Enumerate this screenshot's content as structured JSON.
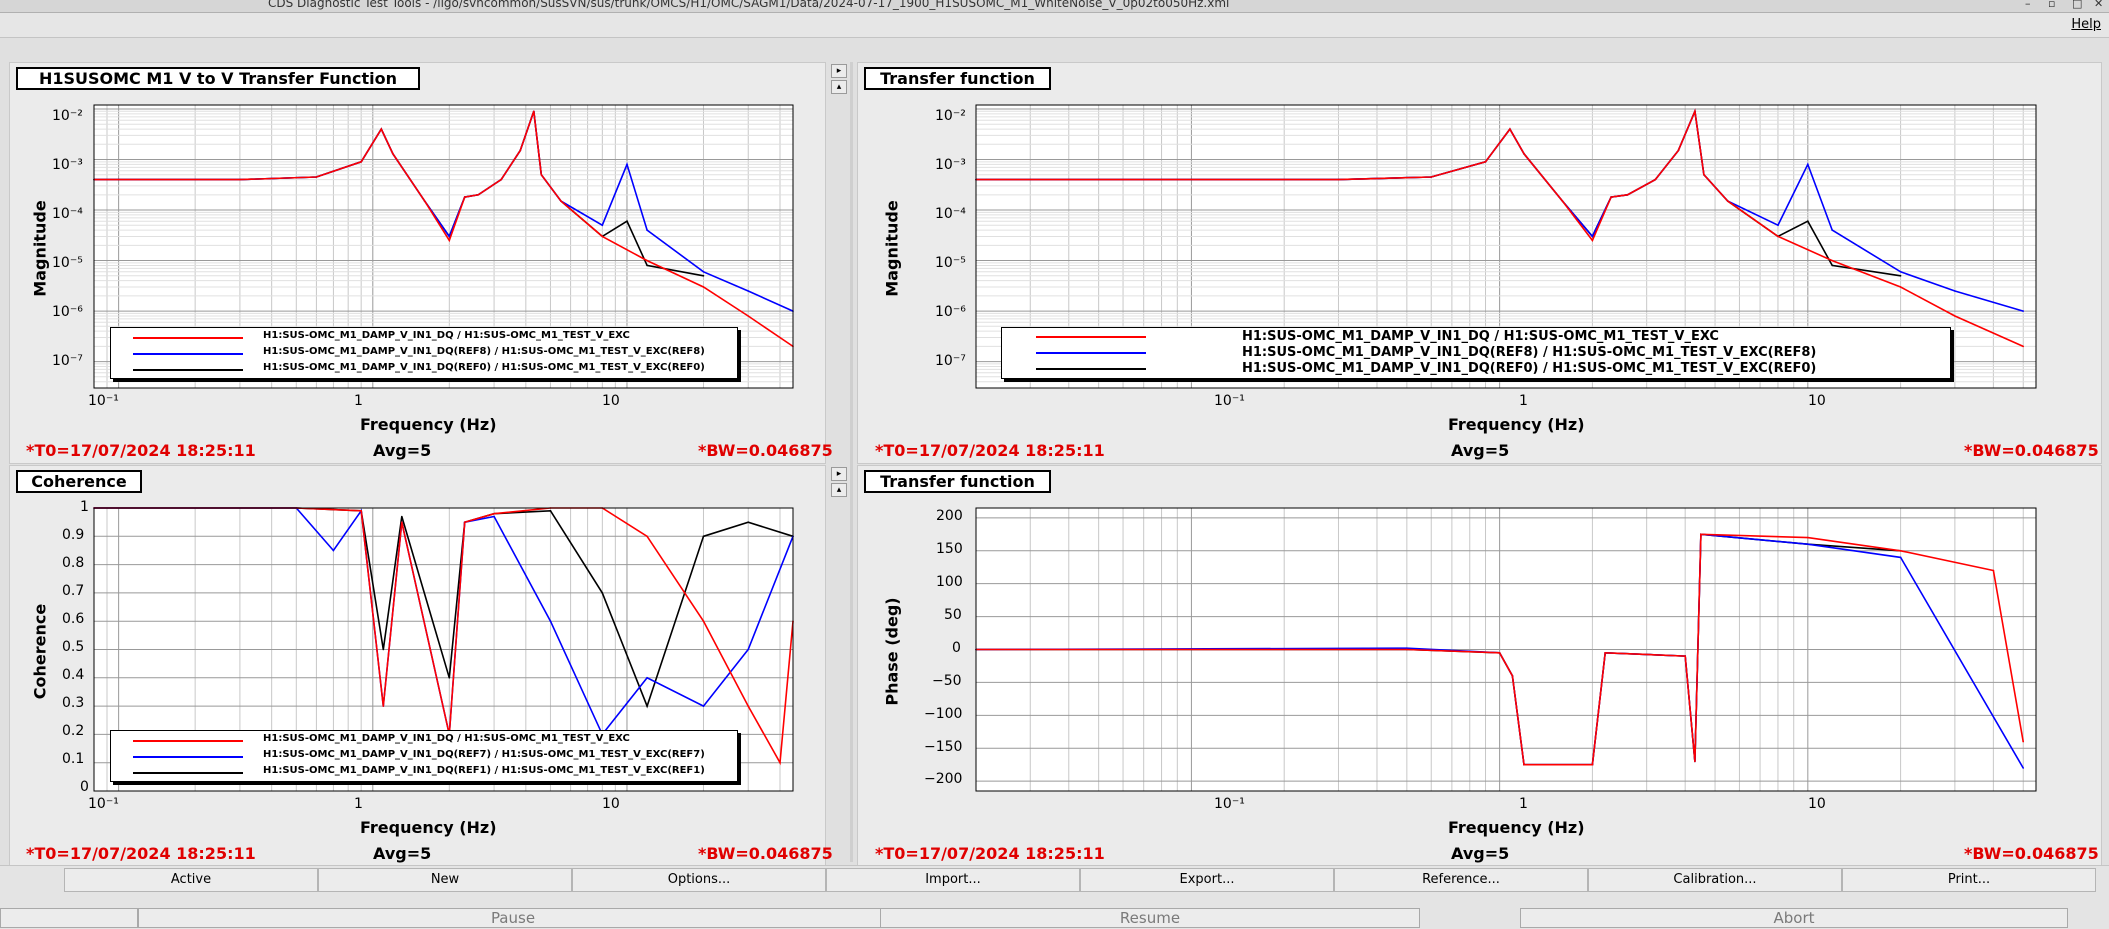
{
  "window": {
    "title": "CDS Diagnostic Test Tools - /ligo/svncommon/SusSVN/sus/trunk/OMCS/H1/OMC/SAGM1/Data/2024-07-17_1900_H1SUSOMC_M1_WhiteNoise_V_0p02to050Hz.xml"
  },
  "menu": {
    "help": "Help"
  },
  "colors": {
    "red": "#ff0000",
    "blue": "#0000ff",
    "black": "#000000",
    "stat_red": "#e00000"
  },
  "panels": [
    {
      "title": "H1SUSOMC M1 V to V Transfer Function",
      "ylabel": "Magnitude",
      "xlabel": "Frequency (Hz)",
      "xticks": [
        "10⁻¹",
        "1",
        "10"
      ],
      "yticks": [
        "10⁻²",
        "10⁻³",
        "10⁻⁴",
        "10⁻⁵",
        "10⁻⁶",
        "10⁻⁷"
      ],
      "legend": [
        "H1:SUS-OMC_M1_DAMP_V_IN1_DQ / H1:SUS-OMC_M1_TEST_V_EXC",
        "H1:SUS-OMC_M1_DAMP_V_IN1_DQ(REF8) / H1:SUS-OMC_M1_TEST_V_EXC(REF8)",
        "H1:SUS-OMC_M1_DAMP_V_IN1_DQ(REF0) / H1:SUS-OMC_M1_TEST_V_EXC(REF0)"
      ],
      "t0": "*T0=17/07/2024 18:25:11",
      "avg": "Avg=5",
      "bw": "*BW=0.046875"
    },
    {
      "title": "Transfer function",
      "ylabel": "Magnitude",
      "xlabel": "Frequency (Hz)",
      "xticks": [
        "10⁻¹",
        "1",
        "10"
      ],
      "yticks": [
        "10⁻²",
        "10⁻³",
        "10⁻⁴",
        "10⁻⁵",
        "10⁻⁶",
        "10⁻⁷"
      ],
      "legend": [
        "H1:SUS-OMC_M1_DAMP_V_IN1_DQ / H1:SUS-OMC_M1_TEST_V_EXC",
        "H1:SUS-OMC_M1_DAMP_V_IN1_DQ(REF8) / H1:SUS-OMC_M1_TEST_V_EXC(REF8)",
        "H1:SUS-OMC_M1_DAMP_V_IN1_DQ(REF0) / H1:SUS-OMC_M1_TEST_V_EXC(REF0)"
      ],
      "t0": "*T0=17/07/2024 18:25:11",
      "avg": "Avg=5",
      "bw": "*BW=0.046875"
    },
    {
      "title": "Coherence",
      "ylabel": "Coherence",
      "xlabel": "Frequency (Hz)",
      "xticks": [
        "10⁻¹",
        "1",
        "10"
      ],
      "yticks": [
        "1",
        "0.9",
        "0.8",
        "0.7",
        "0.6",
        "0.5",
        "0.4",
        "0.3",
        "0.2",
        "0.1",
        "0"
      ],
      "legend": [
        "H1:SUS-OMC_M1_DAMP_V_IN1_DQ / H1:SUS-OMC_M1_TEST_V_EXC",
        "H1:SUS-OMC_M1_DAMP_V_IN1_DQ(REF7) / H1:SUS-OMC_M1_TEST_V_EXC(REF7)",
        "H1:SUS-OMC_M1_DAMP_V_IN1_DQ(REF1) / H1:SUS-OMC_M1_TEST_V_EXC(REF1)"
      ],
      "t0": "*T0=17/07/2024 18:25:11",
      "avg": "Avg=5",
      "bw": "*BW=0.046875"
    },
    {
      "title": "Transfer function",
      "ylabel": "Phase (deg)",
      "xlabel": "Frequency (Hz)",
      "xticks": [
        "10⁻¹",
        "1",
        "10"
      ],
      "yticks": [
        "200",
        "150",
        "100",
        "50",
        "0",
        "−50",
        "−100",
        "−150",
        "−200"
      ],
      "legend": [],
      "t0": "*T0=17/07/2024 18:25:11",
      "avg": "Avg=5",
      "bw": "*BW=0.046875"
    }
  ],
  "toolbar": [
    "Active",
    "New",
    "Options...",
    "Import...",
    "Export...",
    "Reference...",
    "Calibration...",
    "Print..."
  ],
  "controls": [
    "Pause",
    "Resume",
    "Abort"
  ],
  "chart_data": [
    {
      "type": "line",
      "title": "H1SUSOMC M1 V to V Transfer Function",
      "xlabel": "Frequency (Hz)",
      "ylabel": "Magnitude",
      "xscale": "log",
      "yscale": "log",
      "xlim": [
        0.08,
        45
      ],
      "ylim": [
        3e-08,
        0.012
      ],
      "grid": true,
      "legend_placement": "bottom",
      "series": [
        {
          "name": "H1:SUS-OMC_M1_DAMP_V_IN1_DQ / H1:SUS-OMC_M1_TEST_V_EXC",
          "color": "red",
          "x": [
            0.08,
            0.3,
            0.6,
            0.9,
            1.08,
            1.2,
            1.6,
            2.0,
            2.3,
            2.6,
            3.2,
            3.8,
            4.3,
            4.6,
            5.5,
            8,
            12,
            20,
            30,
            45
          ],
          "y": [
            0.0004,
            0.0004,
            0.00045,
            0.0009,
            0.004,
            0.0013,
            0.00015,
            2.5e-05,
            0.00018,
            0.0002,
            0.0004,
            0.0015,
            0.009,
            0.0005,
            0.00015,
            3e-05,
            1e-05,
            3e-06,
            8e-07,
            2e-07
          ]
        },
        {
          "name": "H1:SUS-OMC_M1_DAMP_V_IN1_DQ(REF8) / H1:SUS-OMC_M1_TEST_V_EXC(REF8)",
          "color": "blue",
          "x": [
            0.08,
            0.3,
            0.6,
            0.9,
            1.08,
            1.2,
            1.6,
            2.0,
            2.3,
            2.6,
            3.2,
            3.8,
            4.3,
            4.6,
            5.5,
            8,
            10,
            12,
            20,
            30,
            45
          ],
          "y": [
            0.0004,
            0.0004,
            0.00045,
            0.0009,
            0.004,
            0.0013,
            0.00015,
            3e-05,
            0.00018,
            0.0002,
            0.0004,
            0.0015,
            0.009,
            0.0005,
            0.00015,
            5e-05,
            0.0008,
            4e-05,
            6e-06,
            2.5e-06,
            1e-06
          ]
        },
        {
          "name": "H1:SUS-OMC_M1_DAMP_V_IN1_DQ(REF0) / H1:SUS-OMC_M1_TEST_V_EXC(REF0)",
          "color": "black",
          "x": [
            0.08,
            0.3,
            0.6,
            0.9,
            1.08,
            1.2,
            1.6,
            2.0,
            2.3,
            2.6,
            3.2,
            3.8,
            4.3,
            4.6,
            5.5,
            8,
            10,
            12,
            20
          ],
          "y": [
            0.0004,
            0.0004,
            0.00045,
            0.0009,
            0.004,
            0.0013,
            0.00015,
            3e-05,
            0.00018,
            0.0002,
            0.0004,
            0.0015,
            0.009,
            0.0005,
            0.00015,
            3e-05,
            6e-05,
            8e-06,
            5e-06
          ]
        }
      ]
    },
    {
      "type": "line",
      "title": "Transfer function",
      "xlabel": "Frequency (Hz)",
      "ylabel": "Magnitude",
      "xscale": "log",
      "yscale": "log",
      "xlim": [
        0.02,
        55
      ],
      "ylim": [
        3e-08,
        0.012
      ],
      "grid": true,
      "legend_placement": "bottom",
      "series": [
        {
          "name": "H1:SUS-OMC_M1_DAMP_V_IN1_DQ / H1:SUS-OMC_M1_TEST_V_EXC",
          "color": "red",
          "x": [
            0.02,
            0.3,
            0.6,
            0.9,
            1.08,
            1.2,
            1.6,
            2.0,
            2.3,
            2.6,
            3.2,
            3.8,
            4.3,
            4.6,
            5.5,
            8,
            12,
            20,
            30,
            50
          ],
          "y": [
            0.0004,
            0.0004,
            0.00045,
            0.0009,
            0.004,
            0.0013,
            0.00015,
            2.5e-05,
            0.00018,
            0.0002,
            0.0004,
            0.0015,
            0.009,
            0.0005,
            0.00015,
            3e-05,
            1e-05,
            3e-06,
            8e-07,
            2e-07
          ]
        },
        {
          "name": "H1:SUS-OMC_M1_DAMP_V_IN1_DQ(REF8) / H1:SUS-OMC_M1_TEST_V_EXC(REF8)",
          "color": "blue",
          "x": [
            0.02,
            0.3,
            0.6,
            0.9,
            1.08,
            1.2,
            1.6,
            2.0,
            2.3,
            2.6,
            3.2,
            3.8,
            4.3,
            4.6,
            5.5,
            8,
            10,
            12,
            20,
            30,
            50
          ],
          "y": [
            0.0004,
            0.0004,
            0.00045,
            0.0009,
            0.004,
            0.0013,
            0.00015,
            3e-05,
            0.00018,
            0.0002,
            0.0004,
            0.0015,
            0.009,
            0.0005,
            0.00015,
            5e-05,
            0.0008,
            4e-05,
            6e-06,
            2.5e-06,
            1e-06
          ]
        },
        {
          "name": "H1:SUS-OMC_M1_DAMP_V_IN1_DQ(REF0) / H1:SUS-OMC_M1_TEST_V_EXC(REF0)",
          "color": "black",
          "x": [
            0.02,
            0.3,
            0.6,
            0.9,
            1.08,
            1.2,
            1.6,
            2.0,
            2.3,
            2.6,
            3.2,
            3.8,
            4.3,
            4.6,
            5.5,
            8,
            10,
            12,
            20
          ],
          "y": [
            0.0004,
            0.0004,
            0.00045,
            0.0009,
            0.004,
            0.0013,
            0.00015,
            3e-05,
            0.00018,
            0.0002,
            0.0004,
            0.0015,
            0.009,
            0.0005,
            0.00015,
            3e-05,
            6e-05,
            8e-06,
            5e-06
          ]
        }
      ]
    },
    {
      "type": "line",
      "title": "Coherence",
      "xlabel": "Frequency (Hz)",
      "ylabel": "Coherence",
      "xscale": "log",
      "xlim": [
        0.08,
        45
      ],
      "ylim": [
        0,
        1
      ],
      "grid": true,
      "legend_placement": "bottom",
      "series": [
        {
          "name": "H1:SUS-OMC_M1_DAMP_V_IN1_DQ / H1:SUS-OMC_M1_TEST_V_EXC",
          "color": "red",
          "x": [
            0.08,
            0.5,
            0.9,
            1.1,
            1.3,
            2.0,
            2.3,
            3,
            5,
            8,
            12,
            20,
            30,
            40,
            45
          ],
          "y": [
            1,
            1,
            0.99,
            0.3,
            0.95,
            0.2,
            0.95,
            0.98,
            1,
            1,
            0.9,
            0.6,
            0.3,
            0.1,
            0.6
          ]
        },
        {
          "name": "H1:SUS-OMC_M1_DAMP_V_IN1_DQ(REF7) / H1:SUS-OMC_M1_TEST_V_EXC(REF7)",
          "color": "blue",
          "x": [
            0.08,
            0.5,
            0.7,
            0.9,
            1.1,
            1.3,
            2.0,
            2.3,
            3,
            5,
            8,
            12,
            20,
            30,
            45
          ],
          "y": [
            1,
            1,
            0.85,
            0.99,
            0.3,
            0.95,
            0.2,
            0.95,
            0.97,
            0.6,
            0.2,
            0.4,
            0.3,
            0.5,
            0.9
          ]
        },
        {
          "name": "H1:SUS-OMC_M1_DAMP_V_IN1_DQ(REF1) / H1:SUS-OMC_M1_TEST_V_EXC(REF1)",
          "color": "black",
          "x": [
            0.08,
            0.5,
            0.9,
            1.1,
            1.3,
            2.0,
            2.3,
            3,
            5,
            8,
            12,
            20,
            30,
            45
          ],
          "y": [
            1,
            1,
            0.99,
            0.5,
            0.97,
            0.4,
            0.95,
            0.98,
            0.99,
            0.7,
            0.3,
            0.9,
            0.95,
            0.9
          ]
        }
      ]
    },
    {
      "type": "line",
      "title": "Transfer function",
      "xlabel": "Frequency (Hz)",
      "ylabel": "Phase (deg)",
      "xscale": "log",
      "xlim": [
        0.02,
        55
      ],
      "ylim": [
        -215,
        215
      ],
      "grid": true,
      "series": [
        {
          "name": "",
          "color": "red",
          "x": [
            0.02,
            0.5,
            1.0,
            1.1,
            1.2,
            2.0,
            2.2,
            4.0,
            4.3,
            4.5,
            10,
            20,
            40,
            50
          ],
          "y": [
            0,
            0,
            -5,
            -40,
            -175,
            -175,
            -5,
            -10,
            -170,
            175,
            170,
            150,
            120,
            -140
          ]
        },
        {
          "name": "",
          "color": "blue",
          "x": [
            0.02,
            0.5,
            1.0,
            1.1,
            1.2,
            2.0,
            2.2,
            4.0,
            4.3,
            4.5,
            10,
            20,
            50
          ],
          "y": [
            0,
            2,
            -5,
            -40,
            -175,
            -175,
            -5,
            -10,
            -170,
            175,
            160,
            140,
            -180
          ]
        },
        {
          "name": "",
          "color": "black",
          "x": [
            0.02,
            0.5,
            1.0,
            1.1,
            1.2,
            2.0,
            2.2,
            4.0,
            4.3,
            4.5,
            10,
            20
          ],
          "y": [
            0,
            0,
            -5,
            -40,
            -175,
            -175,
            -5,
            -10,
            -170,
            175,
            160,
            150
          ]
        }
      ]
    }
  ]
}
